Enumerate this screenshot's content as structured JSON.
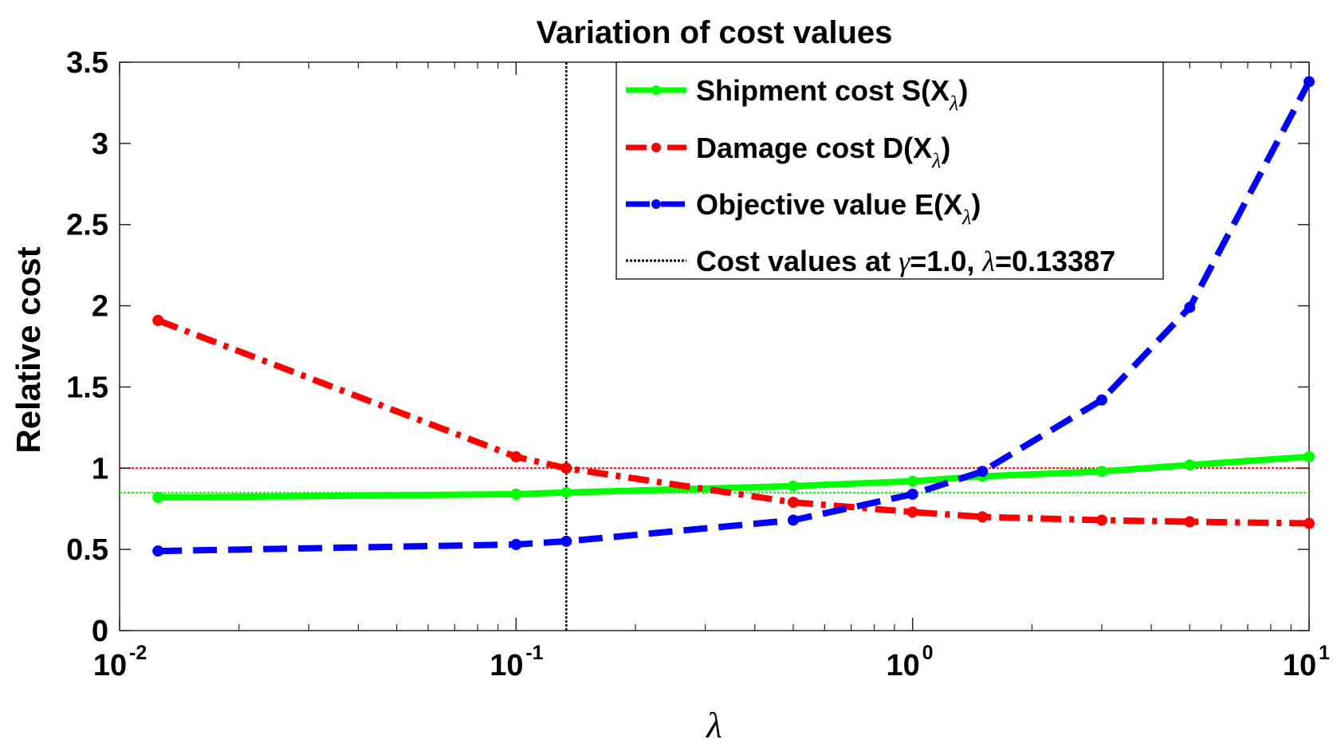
{
  "chart_data": {
    "type": "line",
    "title": "Variation of cost values",
    "xlabel": "λ",
    "ylabel": "Relative cost",
    "xscale": "log",
    "xlim": [
      0.01,
      10
    ],
    "ylim": [
      0,
      3.5
    ],
    "x_ticks": [
      {
        "base": "10",
        "exp": "-2",
        "value": 0.01
      },
      {
        "base": "10",
        "exp": "-1",
        "value": 0.1
      },
      {
        "base": "10",
        "exp": "0",
        "value": 1
      },
      {
        "base": "10",
        "exp": "1",
        "value": 10
      }
    ],
    "y_ticks": [
      {
        "value": 0,
        "label": "0"
      },
      {
        "value": 0.5,
        "label": "0.5"
      },
      {
        "value": 1,
        "label": "1"
      },
      {
        "value": 1.5,
        "label": "1.5"
      },
      {
        "value": 2,
        "label": "2"
      },
      {
        "value": 2.5,
        "label": "2.5"
      },
      {
        "value": 3,
        "label": "3"
      },
      {
        "value": 3.5,
        "label": "3.5"
      }
    ],
    "x": [
      0.0125,
      0.1,
      0.13387,
      0.5,
      1,
      1.5,
      3,
      5,
      10
    ],
    "series": [
      {
        "name": "Shipment cost S(Xλ)",
        "color": "#00ff00",
        "dash": "solid",
        "values": [
          0.82,
          0.84,
          0.85,
          0.89,
          0.92,
          0.95,
          0.98,
          1.02,
          1.07
        ]
      },
      {
        "name": "Damage cost D(Xλ)",
        "color": "#ff0000",
        "dash": "dashdot",
        "values": [
          1.91,
          1.07,
          1.0,
          0.79,
          0.73,
          0.7,
          0.68,
          0.67,
          0.66
        ]
      },
      {
        "name": "Objective value E(Xλ)",
        "color": "#0000ff",
        "dash": "dashed",
        "values": [
          0.49,
          0.53,
          0.55,
          0.68,
          0.84,
          0.98,
          1.42,
          1.99,
          3.38
        ]
      }
    ],
    "reference_lines": [
      {
        "orientation": "vertical",
        "value": 0.13387,
        "color": "#000000",
        "style": "dotted"
      },
      {
        "orientation": "horizontal",
        "value": 1.0,
        "color": "#ff0000",
        "style": "dotted"
      },
      {
        "orientation": "horizontal",
        "value": 0.85,
        "color": "#00ff00",
        "style": "dotted"
      }
    ],
    "legend": {
      "position": "top-right",
      "entries": [
        {
          "main": "Shipment cost S(X",
          "sub": "λ",
          "close": ")",
          "color": "#00ff00",
          "style": "solid"
        },
        {
          "main": "Damage cost D(X",
          "sub": "λ",
          "close": ")",
          "color": "#ff0000",
          "style": "dashdot"
        },
        {
          "main": "Objective value E(X",
          "sub": "λ",
          "close": ")",
          "color": "#0000ff",
          "style": "dashed"
        },
        {
          "pre": "Cost values at ",
          "sym1": "γ",
          "mid": "=1.0, ",
          "sym2": "λ",
          "post": "=0.13387",
          "color": "#000000",
          "style": "dotted"
        }
      ]
    }
  }
}
